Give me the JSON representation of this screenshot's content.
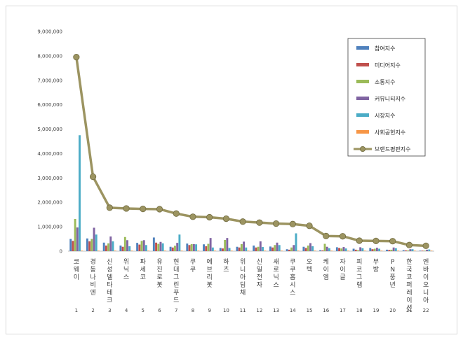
{
  "chart_data": {
    "type": "bar",
    "title": "",
    "xlabel": "",
    "ylabel": "",
    "ylim": [
      0,
      9000000
    ],
    "yticks": [
      "0",
      "1,000,000",
      "2,000,000",
      "3,000,000",
      "4,000,000",
      "5,000,000",
      "6,000,000",
      "7,000,000",
      "8,000,000",
      "9,000,000"
    ],
    "ytick_values": [
      0,
      1000000,
      2000000,
      3000000,
      4000000,
      5000000,
      6000000,
      7000000,
      8000000,
      9000000
    ],
    "categories": [
      "코웨이",
      "경동나비엔",
      "신성델타테크",
      "위닉스",
      "파세코",
      "유진로봇",
      "현대그린푸드",
      "쿠쿠",
      "에브리봇",
      "하츠",
      "위니아딤채",
      "신일전자",
      "새로닉스",
      "쿠쿠홈시스",
      "오텍",
      "케이엠",
      "자이글",
      "피코그램",
      "부방",
      "PN풍년",
      "한국코퍼레이션",
      "엔바이오니아"
    ],
    "ranks": [
      "1",
      "2",
      "3",
      "4",
      "5",
      "6",
      "7",
      "8",
      "9",
      "10",
      "11",
      "12",
      "13",
      "14",
      "15",
      "16",
      "17",
      "18",
      "19",
      "20",
      "21",
      "22"
    ],
    "legend_position": "top-right",
    "grid": false,
    "series": [
      {
        "name": "참여지수",
        "type": "bar",
        "color": "#4f81bd",
        "values": [
          500000,
          520000,
          350000,
          230000,
          340000,
          560000,
          180000,
          310000,
          280000,
          130000,
          180000,
          230000,
          190000,
          80000,
          180000,
          40000,
          160000,
          100000,
          130000,
          60000,
          40000,
          20000
        ]
      },
      {
        "name": "미디어지수",
        "type": "bar",
        "color": "#c0504d",
        "values": [
          420000,
          400000,
          230000,
          180000,
          270000,
          350000,
          150000,
          250000,
          200000,
          110000,
          150000,
          150000,
          150000,
          60000,
          130000,
          30000,
          130000,
          60000,
          80000,
          50000,
          30000,
          20000
        ]
      },
      {
        "name": "소통지수",
        "type": "bar",
        "color": "#9bbb59",
        "values": [
          1320000,
          500000,
          320000,
          580000,
          420000,
          300000,
          220000,
          290000,
          300000,
          460000,
          290000,
          180000,
          250000,
          150000,
          230000,
          300000,
          110000,
          40000,
          100000,
          60000,
          30000,
          20000
        ]
      },
      {
        "name": "커뮤니티지수",
        "type": "bar",
        "color": "#8064a2",
        "values": [
          970000,
          960000,
          600000,
          450000,
          450000,
          380000,
          340000,
          290000,
          540000,
          540000,
          390000,
          400000,
          350000,
          250000,
          330000,
          180000,
          170000,
          160000,
          140000,
          150000,
          80000,
          60000
        ]
      },
      {
        "name": "시장지수",
        "type": "bar",
        "color": "#4bacc6",
        "values": [
          4750000,
          680000,
          400000,
          200000,
          250000,
          320000,
          680000,
          280000,
          150000,
          130000,
          150000,
          170000,
          250000,
          730000,
          200000,
          120000,
          110000,
          120000,
          100000,
          120000,
          80000,
          70000
        ]
      },
      {
        "name": "사회공헌지수",
        "type": "bar",
        "color": "#f79646",
        "values": [
          20000,
          20000,
          20000,
          20000,
          20000,
          20000,
          20000,
          20000,
          20000,
          20000,
          20000,
          20000,
          20000,
          20000,
          20000,
          20000,
          20000,
          20000,
          20000,
          20000,
          20000,
          20000
        ]
      },
      {
        "name": "브랜드평판지수",
        "type": "line",
        "color": "#9c9461",
        "values": [
          7950000,
          3050000,
          1780000,
          1750000,
          1730000,
          1720000,
          1540000,
          1410000,
          1390000,
          1330000,
          1210000,
          1170000,
          1130000,
          1110000,
          1040000,
          620000,
          610000,
          430000,
          420000,
          410000,
          250000,
          220000
        ]
      }
    ]
  }
}
